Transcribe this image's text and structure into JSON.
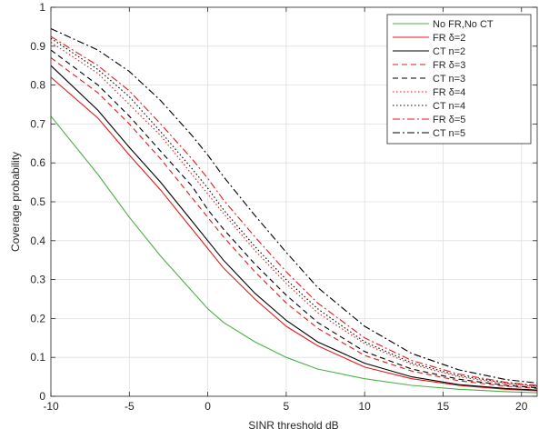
{
  "chart_data": {
    "type": "line",
    "title": "",
    "xlabel": "SINR threshold dB",
    "ylabel": "Coverage probability",
    "xlim": [
      -10,
      21
    ],
    "ylim": [
      0,
      1
    ],
    "xticks": [
      -10,
      -5,
      0,
      5,
      10,
      15,
      20
    ],
    "yticks": [
      0,
      0.1,
      0.2,
      0.3,
      0.4,
      0.5,
      0.6,
      0.7,
      0.8,
      0.9,
      1
    ],
    "xtick_labels": [
      "-10",
      "-5",
      "0",
      "5",
      "10",
      "15",
      "20"
    ],
    "ytick_labels": [
      "0",
      "0.1",
      "0.2",
      "0.3",
      "0.4",
      "0.5",
      "0.6",
      "0.7",
      "0.8",
      "0.9",
      "1"
    ],
    "grid": true,
    "legend_position": "top-right",
    "x": [
      -10,
      -7,
      -5,
      -3,
      -1,
      0,
      1,
      3,
      5,
      7,
      10,
      13,
      16,
      19,
      21
    ],
    "series": [
      {
        "name": "No FR,No CT",
        "color": "#4daf4a",
        "dash": "solid",
        "values": [
          0.72,
          0.57,
          0.46,
          0.36,
          0.27,
          0.225,
          0.19,
          0.14,
          0.1,
          0.07,
          0.045,
          0.028,
          0.018,
          0.012,
          0.009
        ]
      },
      {
        "name": "FR δ=2",
        "color": "#e41a1c",
        "dash": "solid",
        "values": [
          0.82,
          0.715,
          0.62,
          0.53,
          0.43,
          0.38,
          0.33,
          0.25,
          0.18,
          0.13,
          0.075,
          0.045,
          0.028,
          0.018,
          0.014
        ]
      },
      {
        "name": "CT n=2",
        "color": "#000000",
        "dash": "solid",
        "values": [
          0.85,
          0.735,
          0.64,
          0.55,
          0.45,
          0.4,
          0.35,
          0.265,
          0.195,
          0.14,
          0.085,
          0.05,
          0.03,
          0.02,
          0.016
        ]
      },
      {
        "name": "FR δ=3",
        "color": "#e41a1c",
        "dash": "dash",
        "values": [
          0.87,
          0.78,
          0.7,
          0.61,
          0.51,
          0.46,
          0.41,
          0.32,
          0.24,
          0.175,
          0.105,
          0.065,
          0.04,
          0.026,
          0.02
        ]
      },
      {
        "name": "CT n=3",
        "color": "#000000",
        "dash": "dash",
        "values": [
          0.89,
          0.8,
          0.72,
          0.63,
          0.54,
          0.48,
          0.43,
          0.34,
          0.26,
          0.19,
          0.115,
          0.07,
          0.044,
          0.028,
          0.022
        ]
      },
      {
        "name": "FR δ=4",
        "color": "#e41a1c",
        "dash": "dot",
        "values": [
          0.91,
          0.83,
          0.75,
          0.67,
          0.57,
          0.52,
          0.47,
          0.375,
          0.29,
          0.215,
          0.135,
          0.082,
          0.05,
          0.032,
          0.025
        ]
      },
      {
        "name": "CT n=4",
        "color": "#000000",
        "dash": "dot",
        "values": [
          0.92,
          0.84,
          0.77,
          0.68,
          0.585,
          0.535,
          0.48,
          0.385,
          0.3,
          0.225,
          0.14,
          0.086,
          0.053,
          0.034,
          0.026
        ]
      },
      {
        "name": "FR δ=5",
        "color": "#e41a1c",
        "dash": "dashdot",
        "values": [
          0.925,
          0.85,
          0.785,
          0.7,
          0.61,
          0.56,
          0.505,
          0.41,
          0.32,
          0.24,
          0.15,
          0.092,
          0.057,
          0.036,
          0.028
        ]
      },
      {
        "name": "CT n=5",
        "color": "#000000",
        "dash": "dashdot",
        "values": [
          0.945,
          0.89,
          0.835,
          0.76,
          0.67,
          0.62,
          0.565,
          0.465,
          0.37,
          0.28,
          0.18,
          0.11,
          0.068,
          0.043,
          0.034
        ]
      }
    ]
  }
}
